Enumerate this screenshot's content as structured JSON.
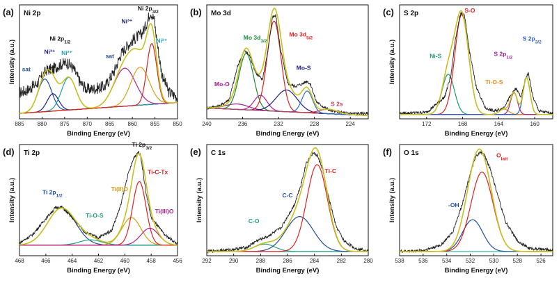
{
  "chart_data": [
    {
      "type": "line",
      "panel": "(a)",
      "title": "Ni 2p",
      "xlabel": "Binding Energy (eV)",
      "ylabel": "Intensity (a.u.)",
      "xlim": [
        885,
        850
      ],
      "xticks": [
        885,
        880,
        875,
        870,
        865,
        860,
        855,
        850
      ],
      "ylim": [
        0,
        1.05
      ],
      "raw": {
        "x": [
          885,
          883,
          881,
          879,
          877.5,
          876,
          874.5,
          873,
          871.5,
          870,
          868,
          866,
          864,
          862.5,
          861,
          859.5,
          858,
          857,
          856,
          855.2,
          854.5,
          853.5,
          852,
          850
        ],
        "y": [
          0.24,
          0.27,
          0.33,
          0.45,
          0.46,
          0.5,
          0.52,
          0.46,
          0.33,
          0.27,
          0.28,
          0.3,
          0.44,
          0.6,
          0.68,
          0.74,
          0.78,
          0.86,
          0.99,
          0.92,
          0.7,
          0.42,
          0.25,
          0.2
        ]
      },
      "baseline": {
        "x": [
          885,
          850
        ],
        "y": [
          0.05,
          0.15
        ]
      },
      "components": [
        {
          "name": "sat",
          "color": "#1f4e9c",
          "center": 879.4,
          "height": 0.3,
          "fwhm": 3.6
        },
        {
          "name": "Ni³⁺",
          "color": "#1c1c80",
          "center": 877.6,
          "height": 0.16,
          "fwhm": 3.0
        },
        {
          "name": "Ni²⁺",
          "color": "#20a0b0",
          "center": 874.1,
          "height": 0.3,
          "fwhm": 3.8
        },
        {
          "name": "sat",
          "color": "#b0208a",
          "center": 861.7,
          "height": 0.35,
          "fwhm": 5.6
        },
        {
          "name": "Ni³⁺",
          "color": "#d4a017",
          "center": 858.3,
          "height": 0.35,
          "fwhm": 4.8
        },
        {
          "name": "Ni²⁺",
          "color": "#e0201e",
          "center": 855.7,
          "height": 0.56,
          "fwhm": 2.6
        }
      ],
      "annotations": [
        {
          "text": "Ni 2p3/2",
          "x": 856.5,
          "y": 1.0
        },
        {
          "text": "Ni 2p1/2",
          "x": 876.0,
          "y": 0.72
        },
        {
          "text": "sat",
          "x": 883.5,
          "y": 0.44
        },
        {
          "text": "Ni³⁺",
          "x": 878.3,
          "y": 0.6
        },
        {
          "text": "Ni²⁺",
          "x": 874.5,
          "y": 0.59
        },
        {
          "text": "sat",
          "x": 865.0,
          "y": 0.56
        },
        {
          "text": "Ni³⁺",
          "x": 861.2,
          "y": 0.88
        },
        {
          "text": "Ni²⁺",
          "x": 853.5,
          "y": 0.7
        }
      ]
    },
    {
      "type": "line",
      "panel": "(b)",
      "title": "Mo 3d",
      "xlabel": "Binding Energy (eV)",
      "ylabel": "",
      "xlim": [
        240,
        222
      ],
      "xticks": [
        240,
        236,
        232,
        228,
        224
      ],
      "ylim": [
        0,
        1.05
      ],
      "raw": {
        "x": [
          240,
          238.5,
          237.5,
          236.5,
          235.8,
          235.2,
          234.5,
          233.8,
          233.2,
          232.7,
          232.3,
          231.8,
          231,
          230.2,
          229.4,
          228.8,
          228.4,
          227.8,
          227,
          226,
          224,
          222
        ],
        "y": [
          0.1,
          0.12,
          0.18,
          0.5,
          0.63,
          0.58,
          0.42,
          0.36,
          0.62,
          0.93,
          0.95,
          0.65,
          0.33,
          0.3,
          0.32,
          0.35,
          0.31,
          0.16,
          0.11,
          0.07,
          0.05,
          0.05
        ]
      },
      "baseline": {
        "x": [
          240,
          222
        ],
        "y": [
          0.1,
          0.03
        ]
      },
      "components": [
        {
          "name": "Mo-O",
          "color": "#9c1c8c",
          "center": 236.6,
          "height": 0.05,
          "fwhm": 3.0
        },
        {
          "name": "Mo 3d3/2",
          "color": "#1a8a3a",
          "center": 235.6,
          "height": 0.52,
          "fwhm": 1.9
        },
        {
          "name": "Mo 3d3/2",
          "color": "#b0208a",
          "center": 234.0,
          "height": 0.14,
          "fwhm": 1.7
        },
        {
          "name": "Mo 3d5/2",
          "color": "#e0201e",
          "center": 232.5,
          "height": 0.83,
          "fwhm": 1.8
        },
        {
          "name": "Mo-S",
          "color": "#1c1c80",
          "center": 231.1,
          "height": 0.2,
          "fwhm": 2.8
        },
        {
          "name": "Mo 3d5/2",
          "color": "#2a6fd0",
          "center": 228.8,
          "height": 0.2,
          "fwhm": 1.4
        },
        {
          "name": "S 2s",
          "color": "#c04060",
          "center": 226.4,
          "height": 0.04,
          "fwhm": 2.4
        }
      ],
      "annotations": [
        {
          "text": "Mo 3d3/2",
          "x": 234.6,
          "y": 0.73
        },
        {
          "text": "Mo 3d5/2",
          "x": 229.5,
          "y": 0.76
        },
        {
          "text": "Mo-S",
          "x": 229.2,
          "y": 0.45
        },
        {
          "text": "Mo-O",
          "x": 238.3,
          "y": 0.3
        },
        {
          "text": "S 2s",
          "x": 225.5,
          "y": 0.12
        }
      ]
    },
    {
      "type": "line",
      "panel": "(c)",
      "title": "S 2p",
      "xlabel": "Binding Energy (eV)",
      "ylabel": "Intensity (a.u.)",
      "xlim": [
        175,
        158
      ],
      "xticks": [
        172,
        168,
        164,
        160
      ],
      "ylim": [
        0,
        1.05
      ],
      "raw": {
        "x": [
          175,
          172,
          170,
          169.3,
          168.8,
          168.2,
          167.8,
          167.2,
          166.5,
          165.5,
          164.5,
          163.5,
          162.6,
          162.1,
          161.5,
          161,
          160.7,
          160.2,
          159.5,
          158
        ],
        "y": [
          0.05,
          0.06,
          0.2,
          0.4,
          0.74,
          0.98,
          0.95,
          0.6,
          0.3,
          0.1,
          0.07,
          0.1,
          0.22,
          0.28,
          0.2,
          0.38,
          0.42,
          0.2,
          0.07,
          0.05
        ]
      },
      "baseline": {
        "x": [
          175,
          158
        ],
        "y": [
          0.04,
          0.04
        ]
      },
      "components": [
        {
          "name": "Ni-S",
          "color": "#1a9a6a",
          "center": 169.6,
          "height": 0.37,
          "fwhm": 1.6
        },
        {
          "name": "S-O",
          "color": "#e0201e",
          "center": 168.1,
          "height": 0.92,
          "fwhm": 1.8
        },
        {
          "name": "Ti-O-S",
          "color": "#e09020",
          "center": 163.4,
          "height": 0.05,
          "fwhm": 1.2
        },
        {
          "name": "S 2p1/2",
          "color": "#9a2090",
          "center": 162.3,
          "height": 0.2,
          "fwhm": 0.9
        },
        {
          "name": "S 2p3/2",
          "color": "#2a5fc0",
          "center": 160.9,
          "height": 0.34,
          "fwhm": 0.9
        }
      ],
      "annotations": [
        {
          "text": "S-O",
          "x": 167.2,
          "y": 0.98
        },
        {
          "text": "Ni-S",
          "x": 171.0,
          "y": 0.56
        },
        {
          "text": "S 2p1/2",
          "x": 163.5,
          "y": 0.58
        },
        {
          "text": "S 2p3/2",
          "x": 160.3,
          "y": 0.72
        },
        {
          "text": "Ti-O-S",
          "x": 164.5,
          "y": 0.32
        }
      ]
    },
    {
      "type": "line",
      "panel": "(d)",
      "title": "Ti 2p",
      "xlabel": "Binding Energy (eV)",
      "ylabel": "Intensity (a.u.)",
      "xlim": [
        468,
        456
      ],
      "xticks": [
        468,
        466,
        464,
        462,
        460,
        458,
        456
      ],
      "ylim": [
        0,
        1.05
      ],
      "raw": {
        "x": [
          468,
          467,
          466,
          465.3,
          464.8,
          464,
          463,
          462,
          461,
          460.3,
          459.8,
          459.3,
          459,
          458.8,
          458.4,
          458,
          457.5,
          457,
          456
        ],
        "y": [
          0.12,
          0.2,
          0.35,
          0.45,
          0.46,
          0.36,
          0.22,
          0.17,
          0.24,
          0.48,
          0.75,
          0.93,
          0.98,
          0.95,
          0.6,
          0.36,
          0.28,
          0.2,
          0.11
        ]
      },
      "baseline": {
        "x": [
          468,
          456
        ],
        "y": [
          0.1,
          0.1
        ]
      },
      "components": [
        {
          "name": "Ti 2p1/2",
          "color": "#1f4e9c",
          "center": 464.8,
          "height": 0.35,
          "fwhm": 2.5
        },
        {
          "name": "Ti-O-S",
          "color": "#20a080",
          "center": 462.6,
          "height": 0.05,
          "fwhm": 2.0
        },
        {
          "name": "Ti(II)O",
          "color": "#d4a017",
          "center": 459.5,
          "height": 0.26,
          "fwhm": 1.7
        },
        {
          "name": "Ti-C-Tx",
          "color": "#e0201e",
          "center": 458.9,
          "height": 0.6,
          "fwhm": 1.2
        },
        {
          "name": "Ti(III)O",
          "color": "#b0208a",
          "center": 458.1,
          "height": 0.16,
          "fwhm": 1.6
        }
      ],
      "annotations": [
        {
          "text": "Ti 2p3/2",
          "x": 458.7,
          "y": 1.03
        },
        {
          "text": "Ti 2p1/2",
          "x": 465.5,
          "y": 0.58
        },
        {
          "text": "Ti-O-S",
          "x": 462.3,
          "y": 0.36
        },
        {
          "text": "Ti(II)O",
          "x": 460.4,
          "y": 0.61
        },
        {
          "text": "Ti-C-Tx",
          "x": 457.5,
          "y": 0.77
        },
        {
          "text": "Ti(III)O",
          "x": 457.0,
          "y": 0.4
        }
      ]
    },
    {
      "type": "line",
      "panel": "(e)",
      "title": "C 1s",
      "xlabel": "Binding Energy (eV)",
      "ylabel": "Intensity (a.u.)",
      "xlim": [
        292,
        280
      ],
      "xticks": [
        292,
        290,
        288,
        286,
        284,
        282,
        280
      ],
      "ylim": [
        0,
        1.05
      ],
      "raw": {
        "x": [
          292,
          290,
          289,
          288.3,
          287.5,
          286.5,
          285.5,
          285,
          284.6,
          284.1,
          283.8,
          283.4,
          283,
          282.4,
          281.8,
          281,
          280
        ],
        "y": [
          0.04,
          0.06,
          0.08,
          0.14,
          0.18,
          0.26,
          0.48,
          0.67,
          0.88,
          0.97,
          0.95,
          0.82,
          0.58,
          0.28,
          0.14,
          0.07,
          0.05
        ]
      },
      "baseline": {
        "x": [
          292,
          280
        ],
        "y": [
          0.04,
          0.04
        ]
      },
      "components": [
        {
          "name": "C-O",
          "color": "#20a080",
          "center": 287.7,
          "height": 0.07,
          "fwhm": 1.8
        },
        {
          "name": "C-C",
          "color": "#1f4e9c",
          "center": 285.1,
          "height": 0.33,
          "fwhm": 2.4
        },
        {
          "name": "Ti-C",
          "color": "#e0201e",
          "center": 283.8,
          "height": 0.82,
          "fwhm": 1.8
        }
      ],
      "annotations": [
        {
          "text": "Ti-C",
          "x": 282.8,
          "y": 0.78
        },
        {
          "text": "C-C",
          "x": 286.0,
          "y": 0.55
        },
        {
          "text": "C-O",
          "x": 288.5,
          "y": 0.31
        }
      ]
    },
    {
      "type": "line",
      "panel": "(f)",
      "title": "O 1s",
      "xlabel": "Binding Energy (eV)",
      "ylabel": "Intensity (a.u.)",
      "xlim": [
        538,
        525
      ],
      "xticks": [
        538,
        536,
        534,
        532,
        530,
        528,
        526
      ],
      "ylim": [
        0,
        1.05
      ],
      "raw": {
        "x": [
          538,
          536,
          534.5,
          533.5,
          532.7,
          532,
          531.5,
          531.1,
          530.8,
          530.3,
          529.8,
          529,
          528,
          527,
          525
        ],
        "y": [
          0.04,
          0.05,
          0.1,
          0.22,
          0.48,
          0.78,
          0.94,
          0.98,
          0.95,
          0.82,
          0.62,
          0.32,
          0.14,
          0.07,
          0.05
        ]
      },
      "baseline": {
        "x": [
          538,
          525
        ],
        "y": [
          0.04,
          0.04
        ]
      },
      "components": [
        {
          "name": "-OH",
          "color": "#1f4e9c",
          "center": 531.8,
          "height": 0.3,
          "fwhm": 2.0
        },
        {
          "name": "Olatt",
          "color": "#e0201e",
          "center": 531.0,
          "height": 0.75,
          "fwhm": 2.2
        }
      ],
      "annotations": [
        {
          "text": "Olatt",
          "x": 529.3,
          "y": 0.93
        },
        {
          "text": "-OH",
          "x": 533.4,
          "y": 0.46
        }
      ]
    }
  ],
  "style": {
    "raw_color": "#222222",
    "envelope_color": "#c8c020",
    "baseline_color": "#20b0a0"
  }
}
